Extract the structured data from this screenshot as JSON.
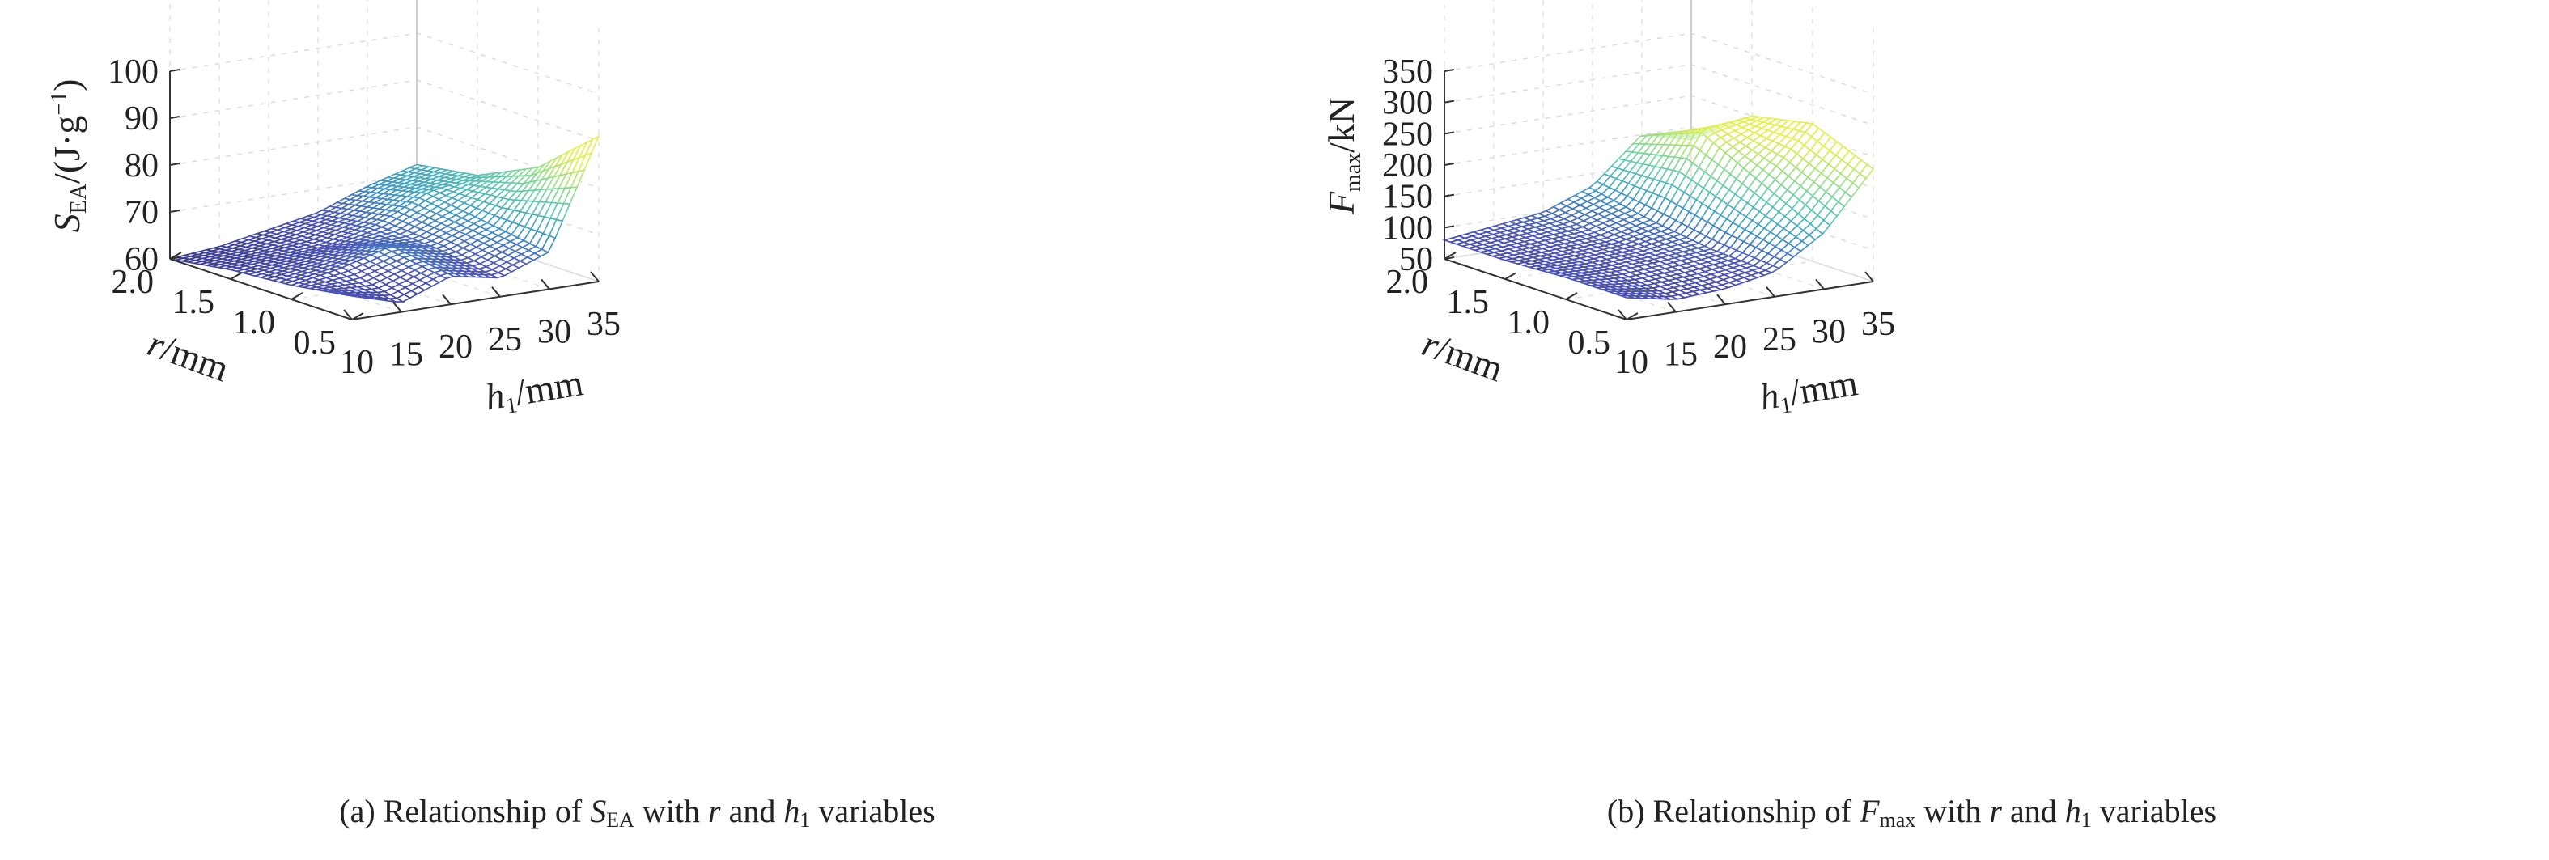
{
  "chart_data": [
    {
      "type": "surface",
      "caption": {
        "prefix": "(a) Relationship of ",
        "var": "S",
        "var_sub": "EA",
        "with": " with ",
        "r": "r",
        "and": " and ",
        "h": "h",
        "h_sub": "1",
        "suffix": " variables"
      },
      "zlabel": {
        "var": "S",
        "sub": "EA",
        "unit": "/(J·g",
        "exp": "−1",
        "close": ")"
      },
      "xlabel": {
        "var": "h",
        "sub": "1",
        "unit": "/mm"
      },
      "ylabel": {
        "var": "r",
        "unit": "/mm"
      },
      "xticks": [
        "10",
        "15",
        "20",
        "25",
        "30",
        "35"
      ],
      "yticks": [
        "0.5",
        "1.0",
        "1.5",
        "2.0"
      ],
      "zticks": [
        "60",
        "70",
        "80",
        "90",
        "100"
      ],
      "xlim": [
        10,
        35
      ],
      "ylim": [
        0.5,
        2.0
      ],
      "zlim": [
        60,
        100
      ],
      "grid": true,
      "colormap": [
        "#3a3a90",
        "#4d55b8",
        "#3f9ac4",
        "#5dc9b3",
        "#9be08a",
        "#e3ef4a"
      ],
      "h1": [
        10,
        15,
        20,
        25,
        30,
        35
      ],
      "r": [
        0.5,
        1.0,
        1.5,
        2.0
      ],
      "z": [
        [
          65,
          62,
          66,
          64,
          68,
          91
        ],
        [
          63,
          65,
          68,
          66,
          70,
          80
        ],
        [
          62,
          63,
          64,
          67,
          72,
          74
        ],
        [
          60,
          61,
          63,
          65,
          69,
          72
        ]
      ]
    },
    {
      "type": "surface",
      "caption": {
        "prefix": "(b) Relationship of ",
        "var": "F",
        "var_sub": "max",
        "with": " with ",
        "r": "r",
        "and": " and ",
        "h": "h",
        "h_sub": "1",
        "suffix": " variables"
      },
      "zlabel": {
        "var": "F",
        "sub": "max",
        "unit": "/kN",
        "exp": "",
        "close": ""
      },
      "xlabel": {
        "var": "h",
        "sub": "1",
        "unit": "/mm"
      },
      "ylabel": {
        "var": "r",
        "unit": "/mm"
      },
      "xticks": [
        "10",
        "15",
        "20",
        "25",
        "30",
        "35"
      ],
      "yticks": [
        "0.5",
        "1.0",
        "1.5",
        "2.0"
      ],
      "zticks": [
        "50",
        "100",
        "150",
        "200",
        "250",
        "300",
        "350"
      ],
      "xlim": [
        10,
        35
      ],
      "ylim": [
        0.5,
        2.0
      ],
      "zlim": [
        50,
        350
      ],
      "grid": true,
      "colormap": [
        "#3a3a90",
        "#4d55b8",
        "#3f9ac4",
        "#5dc9b3",
        "#9be08a",
        "#e3ef4a"
      ],
      "h1": [
        10,
        15,
        20,
        25,
        30,
        35
      ],
      "r": [
        0.5,
        1.0,
        1.5,
        2.0
      ],
      "z": [
        [
          85,
          70,
          75,
          90,
          140,
          230
        ],
        [
          85,
          82,
          88,
          95,
          190,
          270
        ],
        [
          80,
          85,
          90,
          110,
          240,
          250
        ],
        [
          80,
          90,
          100,
          130,
          200,
          180
        ]
      ]
    }
  ]
}
